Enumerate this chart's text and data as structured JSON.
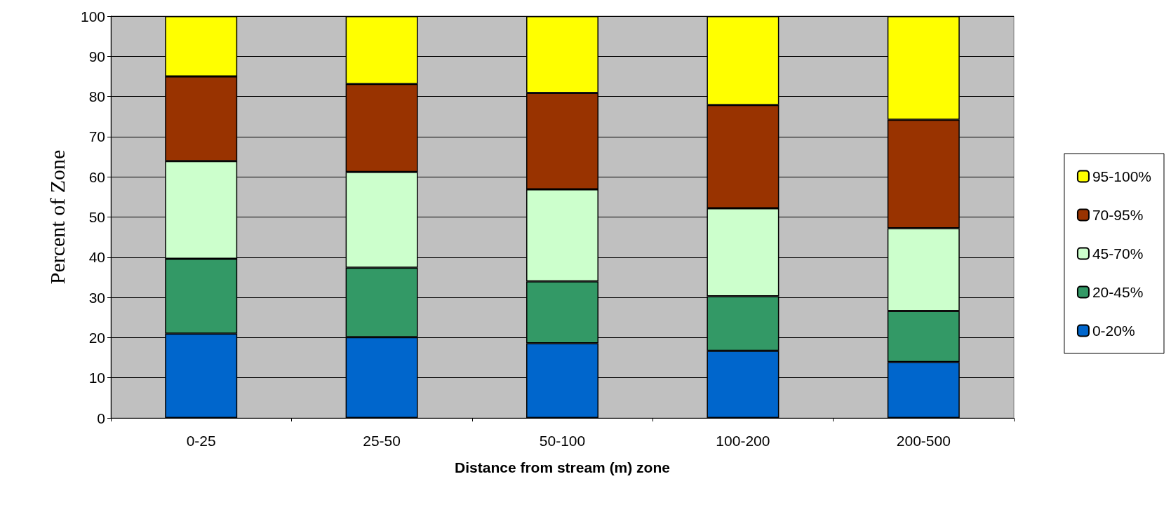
{
  "chart_data": {
    "type": "bar",
    "stacked": true,
    "xlabel": "Distance from stream (m) zone",
    "ylabel": "Percent of Zone",
    "categories": [
      "0-25",
      "25-50",
      "50-100",
      "100-200",
      "200-500"
    ],
    "series": [
      {
        "name": "0-20%",
        "color": "#0066cc",
        "values": [
          21.0,
          20.1,
          18.6,
          16.7,
          13.9
        ]
      },
      {
        "name": "20-45%",
        "color": "#339966",
        "values": [
          18.6,
          17.3,
          15.4,
          13.6,
          12.7
        ]
      },
      {
        "name": "45-70%",
        "color": "#ccffcc",
        "values": [
          24.3,
          23.8,
          22.9,
          21.9,
          20.6
        ]
      },
      {
        "name": "70-95%",
        "color": "#993300",
        "values": [
          21.1,
          21.9,
          24.0,
          25.7,
          27.0
        ]
      },
      {
        "name": "95-100%",
        "color": "#ffff00",
        "values": [
          15.0,
          16.9,
          19.1,
          22.1,
          25.8
        ]
      }
    ],
    "ylim": [
      0,
      100
    ],
    "yticks": [
      0,
      10,
      20,
      30,
      40,
      50,
      60,
      70,
      80,
      90,
      100
    ],
    "grid": "y",
    "legend": "right"
  }
}
